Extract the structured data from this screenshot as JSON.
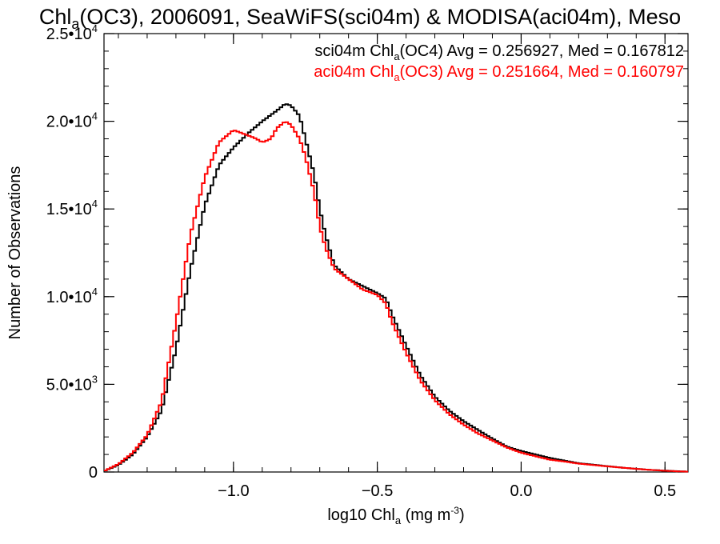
{
  "chart_data": {
    "type": "line",
    "title": {
      "pre": "Chl",
      "sub": "a",
      "post": "(OC3), 2006091, SeaWiFS(sci04m) & MODISA(aci04m), Meso"
    },
    "xlabel": {
      "pre": "log10 Chl",
      "sub": "a",
      "mid": " (mg m",
      "sup": "-3",
      "post": ")"
    },
    "ylabel": "Number of Observations",
    "xlim": [
      -1.45,
      0.58
    ],
    "ylim": [
      0,
      25000
    ],
    "x_ticks": [
      {
        "value": -1.0,
        "label": "−1.0"
      },
      {
        "value": -0.5,
        "label": "−0.5"
      },
      {
        "value": 0.0,
        "label": "0.0"
      },
      {
        "value": 0.5,
        "label": "0.5"
      }
    ],
    "x_minor_step": 0.1,
    "y_ticks": [
      {
        "value": 0,
        "base": "0",
        "exp": ""
      },
      {
        "value": 5000,
        "base": "5.0•10",
        "exp": "3"
      },
      {
        "value": 10000,
        "base": "1.0•10",
        "exp": "4"
      },
      {
        "value": 15000,
        "base": "1.5•10",
        "exp": "4"
      },
      {
        "value": 20000,
        "base": "2.0•10",
        "exp": "4"
      },
      {
        "value": 25000,
        "base": "2.5•10",
        "exp": "4"
      }
    ],
    "y_minor_step": 1000,
    "legend_placement": "top-right",
    "series": [
      {
        "name": {
          "pre": "sci04m Chl",
          "sub": "a",
          "post": "(OC4) Avg = 0.256927, Med = 0.167812"
        },
        "color": "#000000",
        "x": [
          -1.45,
          -1.4,
          -1.35,
          -1.3,
          -1.25,
          -1.2,
          -1.15,
          -1.1,
          -1.05,
          -1.0,
          -0.95,
          -0.9,
          -0.85,
          -0.82,
          -0.8,
          -0.77,
          -0.75,
          -0.72,
          -0.7,
          -0.68,
          -0.65,
          -0.6,
          -0.55,
          -0.5,
          -0.47,
          -0.45,
          -0.4,
          -0.35,
          -0.3,
          -0.25,
          -0.2,
          -0.15,
          -0.1,
          -0.05,
          0.0,
          0.05,
          0.1,
          0.15,
          0.2,
          0.25,
          0.3,
          0.35,
          0.4,
          0.45,
          0.5,
          0.55,
          0.58
        ],
        "values": [
          50,
          400,
          1000,
          2000,
          3500,
          7000,
          11500,
          15200,
          17500,
          18500,
          19300,
          20000,
          20600,
          21000,
          20900,
          20300,
          19000,
          17000,
          15000,
          13500,
          11800,
          11000,
          10600,
          10200,
          9900,
          9000,
          7200,
          5500,
          4300,
          3500,
          2900,
          2400,
          1900,
          1450,
          1200,
          1000,
          800,
          650,
          500,
          420,
          330,
          250,
          180,
          120,
          80,
          40,
          20
        ]
      },
      {
        "name": {
          "pre": "aci04m Chl",
          "sub": "a",
          "post": "(OC3) Avg = 0.251664, Med = 0.160797"
        },
        "color": "#ff0000",
        "x": [
          -1.45,
          -1.4,
          -1.35,
          -1.3,
          -1.25,
          -1.2,
          -1.15,
          -1.1,
          -1.05,
          -1.0,
          -0.95,
          -0.92,
          -0.9,
          -0.87,
          -0.85,
          -0.82,
          -0.8,
          -0.77,
          -0.75,
          -0.72,
          -0.7,
          -0.68,
          -0.65,
          -0.6,
          -0.55,
          -0.5,
          -0.47,
          -0.45,
          -0.4,
          -0.35,
          -0.3,
          -0.25,
          -0.2,
          -0.15,
          -0.1,
          -0.05,
          0.0,
          0.05,
          0.1,
          0.15,
          0.2,
          0.25,
          0.3,
          0.35,
          0.4,
          0.45,
          0.5,
          0.55,
          0.58
        ],
        "values": [
          50,
          450,
          1100,
          2100,
          4000,
          8500,
          13500,
          16800,
          18800,
          19500,
          19200,
          19000,
          18800,
          19000,
          19600,
          20000,
          19800,
          19000,
          18000,
          16000,
          14000,
          12800,
          11600,
          11000,
          10400,
          10100,
          9600,
          8600,
          6800,
          5200,
          4100,
          3300,
          2700,
          2200,
          1800,
          1400,
          1100,
          900,
          700,
          600,
          480,
          400,
          320,
          250,
          180,
          120,
          70,
          35,
          20
        ]
      }
    ]
  },
  "colors": {
    "axis": "#000000",
    "background": "#ffffff",
    "series_1": "#000000",
    "series_2": "#ff0000"
  }
}
